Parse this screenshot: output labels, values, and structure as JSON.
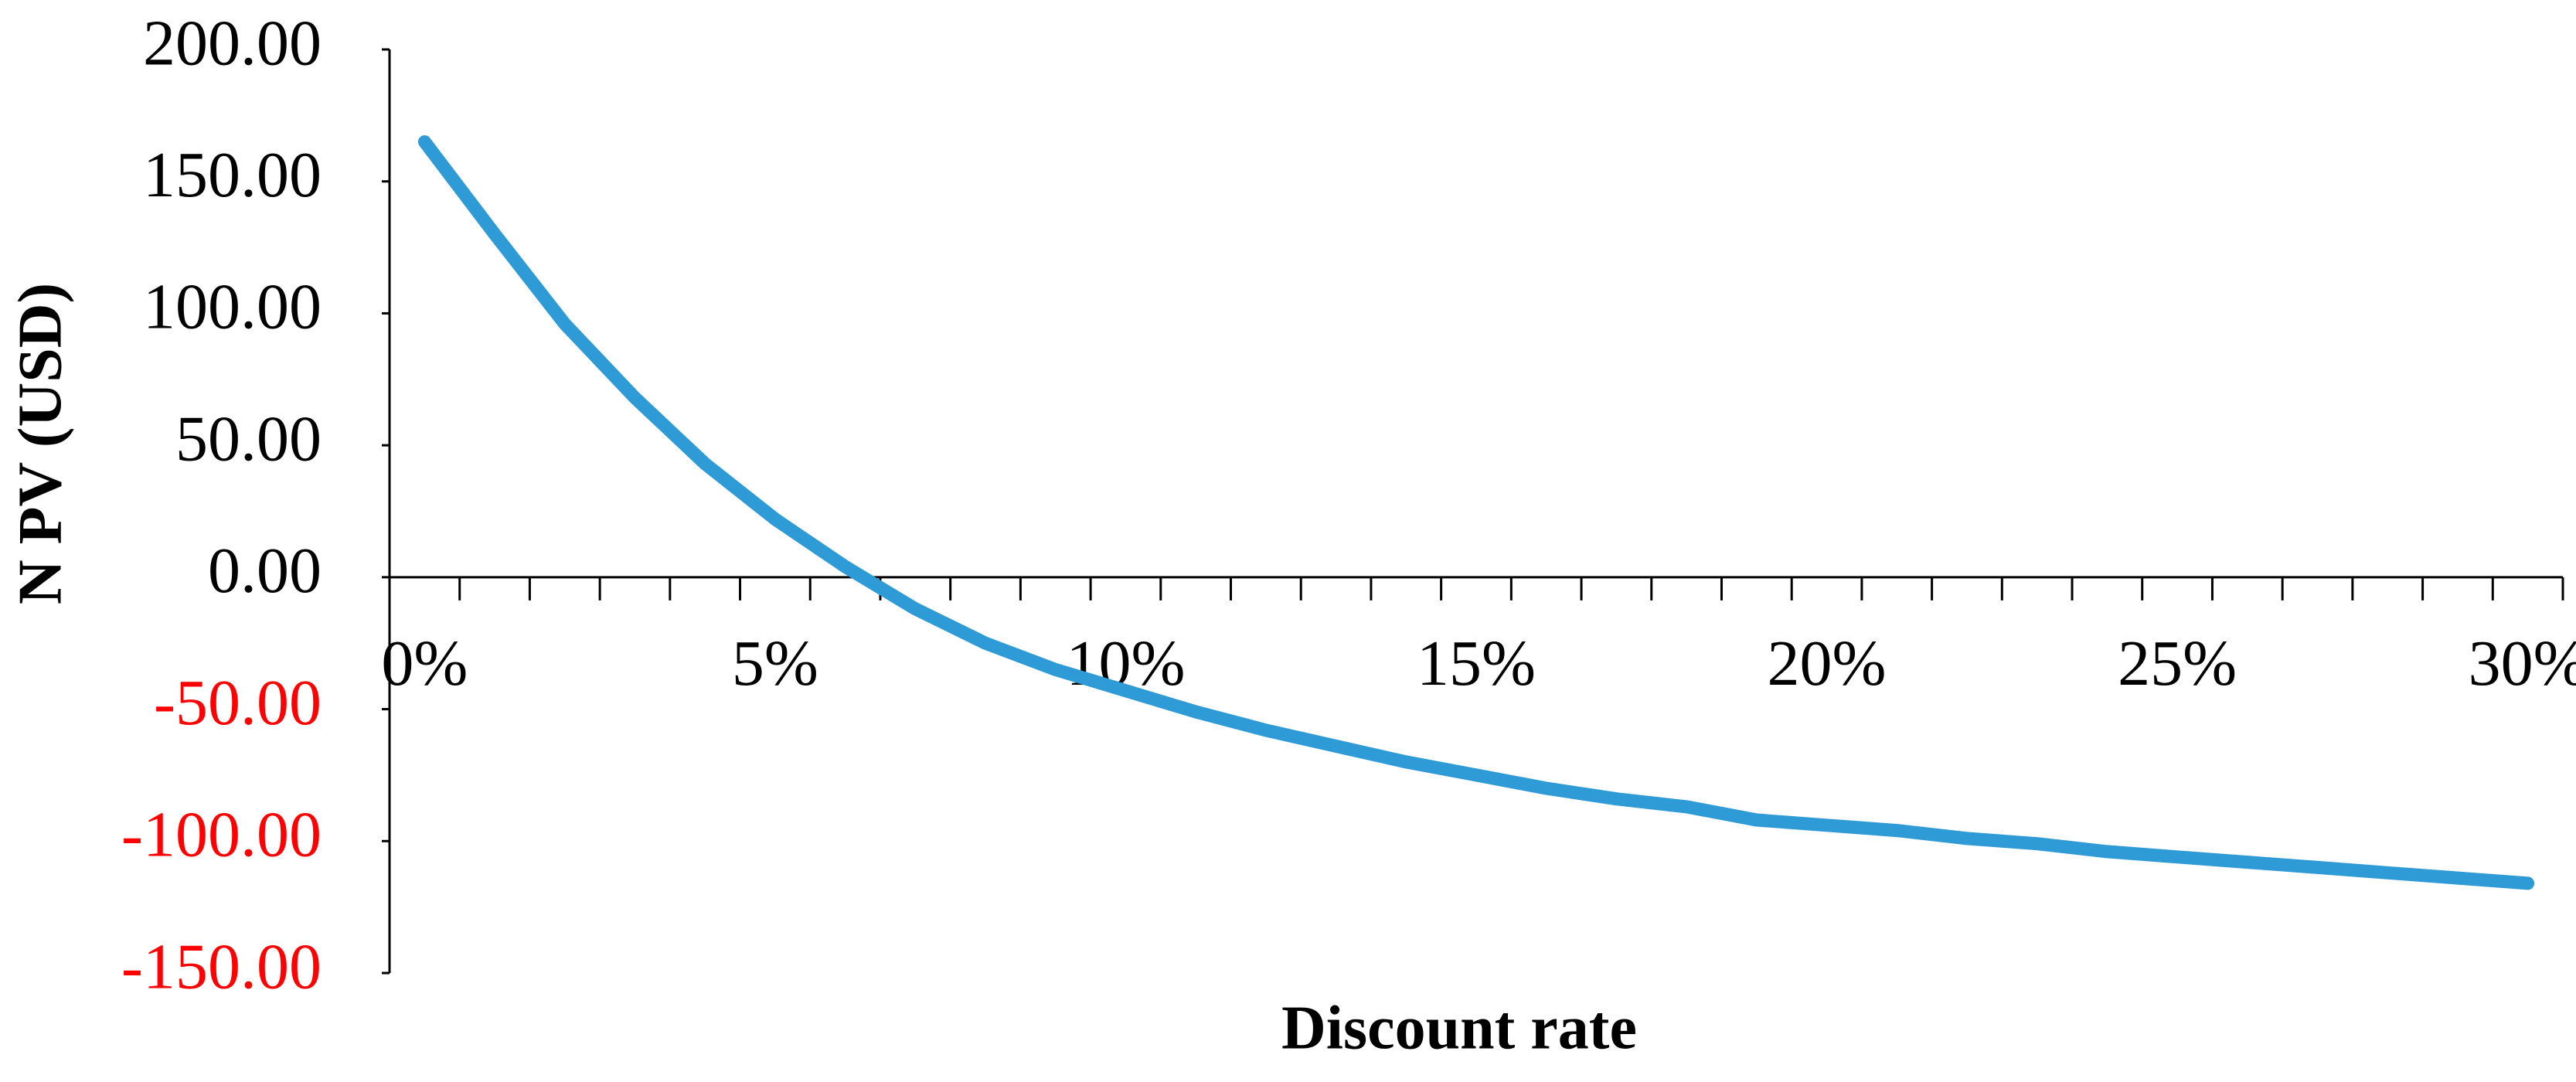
{
  "chart_data": {
    "type": "line",
    "x_label": "Discount rate",
    "y_label": "N PV (USD)",
    "categories": [
      "0%",
      null,
      null,
      null,
      null,
      "5%",
      null,
      null,
      null,
      null,
      "10%",
      null,
      null,
      null,
      null,
      "15%",
      null,
      null,
      null,
      null,
      "20%",
      null,
      null,
      null,
      null,
      "25%",
      null,
      null,
      null,
      null,
      "30%"
    ],
    "series": [
      {
        "color": "#2e9bd6",
        "values": [
          165,
          130,
          96,
          68,
          43,
          22,
          4,
          -12,
          -25,
          -35,
          -43,
          -51,
          -58,
          -64,
          -70,
          -75,
          -80,
          -84,
          -87,
          -92,
          -94,
          -96,
          -99,
          -101,
          -104,
          -106,
          -108,
          -110,
          -112,
          -114,
          -116
        ]
      }
    ],
    "ylim": [
      -150,
      200
    ],
    "yticks": [
      {
        "value": 200,
        "label": "200.00"
      },
      {
        "value": 150,
        "label": "150.00"
      },
      {
        "value": 100,
        "label": "100.00"
      },
      {
        "value": 50,
        "label": "50.00"
      },
      {
        "value": 0,
        "label": "0.00"
      },
      {
        "value": -50,
        "label": "-50.00"
      },
      {
        "value": -100,
        "label": "-100.00"
      },
      {
        "value": -150,
        "label": "-150.00"
      }
    ],
    "negative_tick_color": "#ff0000"
  }
}
